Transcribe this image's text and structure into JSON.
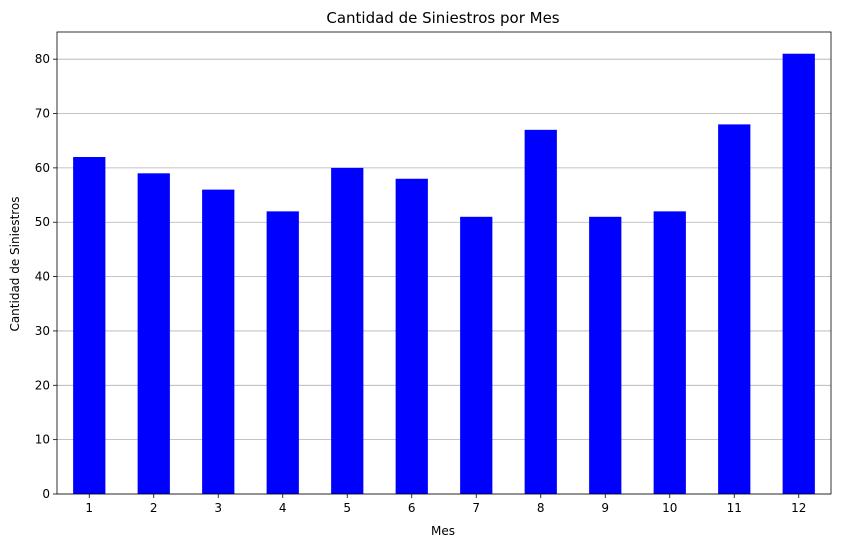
{
  "chart_data": {
    "type": "bar",
    "title": "Cantidad de Siniestros por Mes",
    "xlabel": "Mes",
    "ylabel": "Cantidad de Siniestros",
    "categories": [
      "1",
      "2",
      "3",
      "4",
      "5",
      "6",
      "7",
      "8",
      "9",
      "10",
      "11",
      "12"
    ],
    "values": [
      62,
      59,
      56,
      52,
      60,
      58,
      51,
      67,
      51,
      52,
      68,
      81
    ],
    "ylim": [
      0,
      85
    ],
    "yticks": [
      0,
      10,
      20,
      30,
      40,
      50,
      60,
      70,
      80
    ],
    "grid": "y",
    "bar_color": "#0000ff",
    "grid_color": "#b0b0b0"
  }
}
